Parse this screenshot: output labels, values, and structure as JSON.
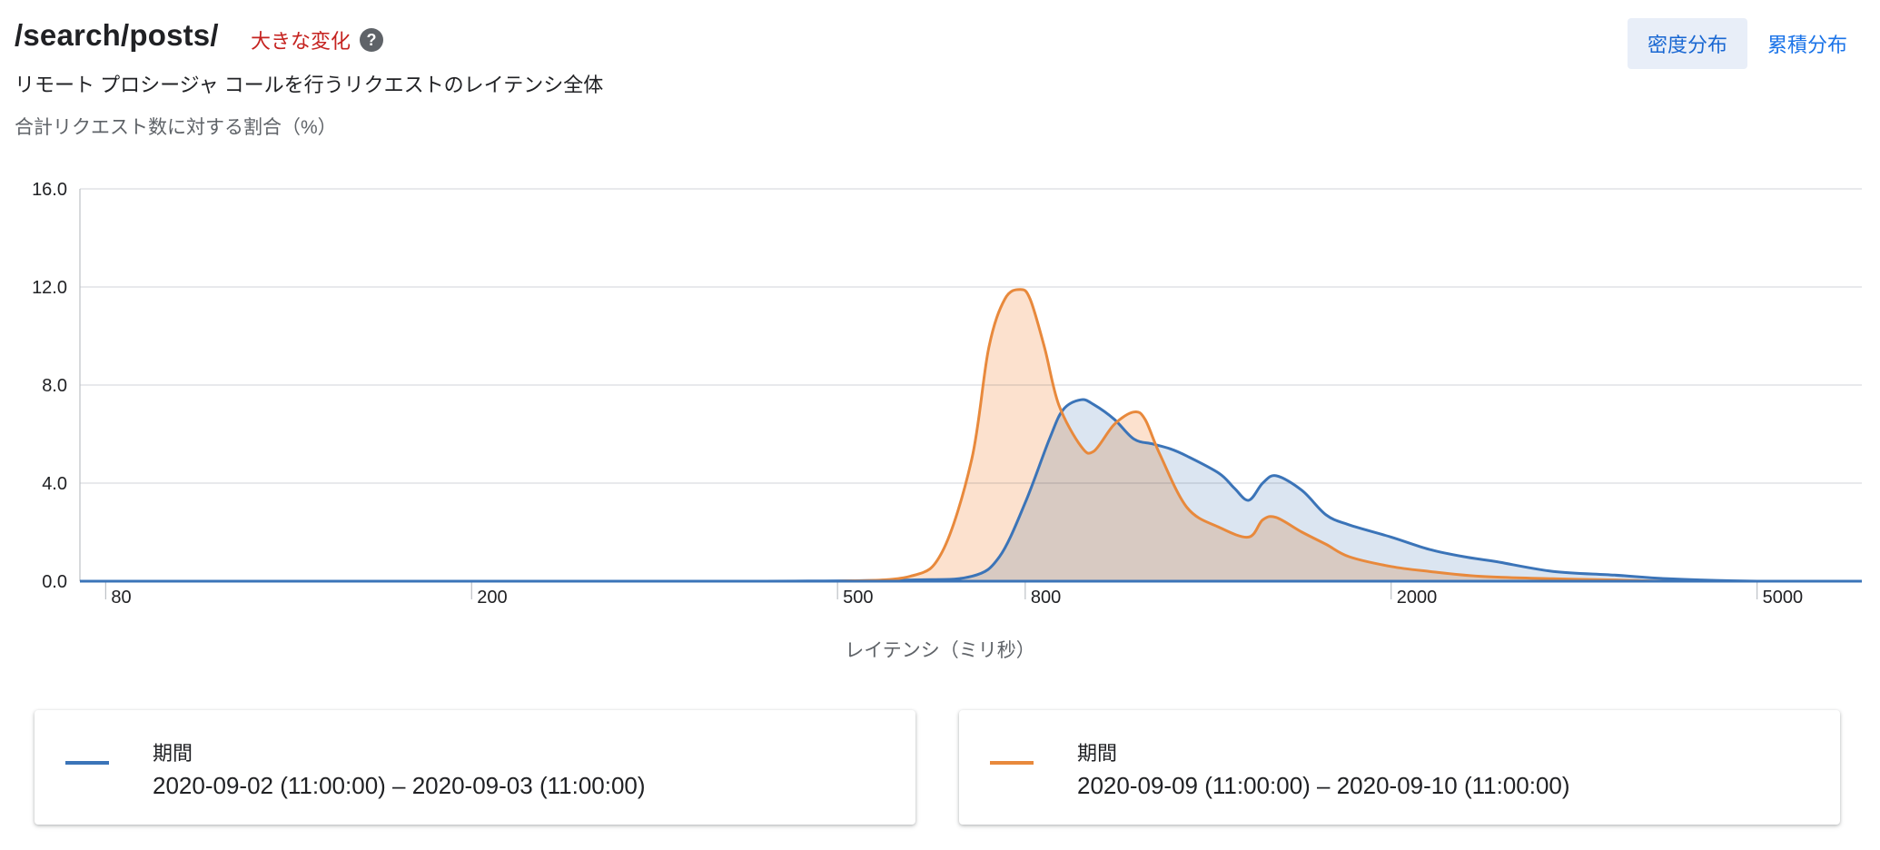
{
  "header": {
    "title": "/search/posts/",
    "badge": "大きな変化",
    "help_icon": "help-circle-icon",
    "subtitle": "リモート プロシージャ コールを行うリクエストのレイテンシ全体",
    "y_axis_label": "合計リクエスト数に対する割合（%）"
  },
  "toggle": {
    "density_label": "密度分布",
    "cumulative_label": "累積分布",
    "selected": "density"
  },
  "legend": [
    {
      "label": "期間",
      "range": "2020-09-02 (11:00:00) – 2020-09-03 (11:00:00)",
      "color": "#3b74b8"
    },
    {
      "label": "期間",
      "range": "2020-09-09 (11:00:00) – 2020-09-10 (11:00:00)",
      "color": "#e8893c"
    }
  ],
  "chart_data": {
    "type": "area",
    "xlabel": "レイテンシ（ミリ秒）",
    "ylabel": "合計リクエスト数に対する割合（%）",
    "x_scale": "log",
    "xlim": [
      75,
      6500
    ],
    "ylim": [
      0,
      16
    ],
    "y_ticks": [
      "0.0",
      "4.0",
      "8.0",
      "12.0",
      "16.0"
    ],
    "y_tick_values": [
      0,
      4,
      8,
      12,
      16
    ],
    "x_ticks": [
      "80",
      "200",
      "500",
      "800",
      "2000",
      "5000"
    ],
    "x_tick_values": [
      80,
      200,
      500,
      800,
      2000,
      5000
    ],
    "grid": true,
    "series": [
      {
        "color": "#3b74b8",
        "fill": "#d5e1ee",
        "x": [
          75,
          200,
          400,
          600,
          700,
          750,
          800,
          850,
          880,
          920,
          950,
          1000,
          1050,
          1100,
          1150,
          1200,
          1300,
          1350,
          1400,
          1450,
          1500,
          1600,
          1700,
          1800,
          2000,
          2200,
          2400,
          2600,
          3000,
          3500,
          4000,
          5000,
          6500
        ],
        "values": [
          0.0,
          0.0,
          0.0,
          0.05,
          0.2,
          1.0,
          3.2,
          5.8,
          7.0,
          7.4,
          7.2,
          6.6,
          5.8,
          5.6,
          5.4,
          5.1,
          4.4,
          3.8,
          3.3,
          4.0,
          4.3,
          3.7,
          2.7,
          2.3,
          1.8,
          1.3,
          1.0,
          0.8,
          0.4,
          0.25,
          0.1,
          0.0,
          0.0
        ]
      },
      {
        "color": "#e8893c",
        "fill": "#fbdcc5",
        "x": [
          430,
          500,
          600,
          650,
          700,
          730,
          760,
          790,
          810,
          840,
          870,
          920,
          950,
          1000,
          1050,
          1080,
          1120,
          1200,
          1300,
          1400,
          1450,
          1500,
          1600,
          1700,
          1800,
          2000,
          2200,
          2500,
          3000,
          3500,
          4000,
          4800
        ],
        "values": [
          0.0,
          0.0,
          0.2,
          1.2,
          5.0,
          9.5,
          11.5,
          11.9,
          11.5,
          9.5,
          7.2,
          5.5,
          5.3,
          6.4,
          6.9,
          6.6,
          5.2,
          3.0,
          2.2,
          1.8,
          2.5,
          2.6,
          2.0,
          1.5,
          1.0,
          0.6,
          0.4,
          0.2,
          0.1,
          0.05,
          0.0,
          0.0
        ]
      }
    ]
  }
}
